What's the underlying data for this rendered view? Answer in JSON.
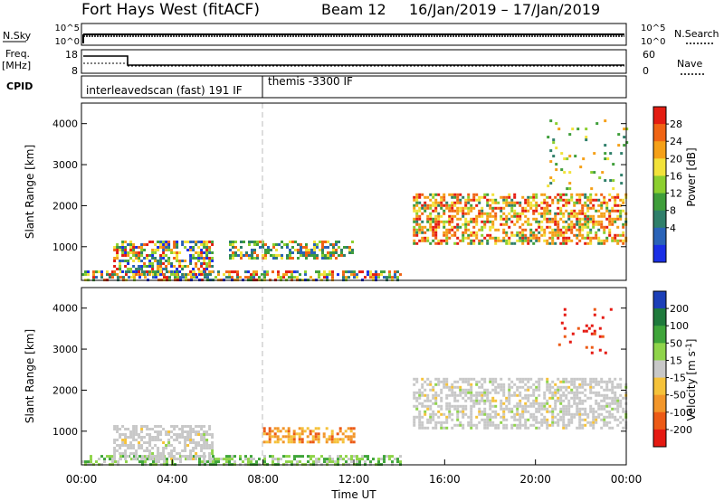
{
  "header": {
    "title": "Fort Hays West (fitACF)",
    "beam": "Beam 12",
    "dates": "16/Jan/2019 – 17/Jan/2019"
  },
  "strip": {
    "nsky_label": "N.Sky",
    "nsearch_label": "N.Search",
    "freq_label": "Freq.",
    "freq_unit": "[MHz]",
    "nave_label": "Nave",
    "cpid_label": "CPID",
    "nsky_ticks": [
      "10^5",
      "10^0"
    ],
    "nsearch_ticks": [
      "10^5",
      "10^0"
    ],
    "freq_ticks": [
      "18",
      "8"
    ],
    "nave_ticks": [
      "60",
      "0"
    ],
    "cpid_segments": [
      {
        "start": 0.0,
        "label": "interleavedscan (fast)  191 IF"
      },
      {
        "start": 8.0,
        "label": "themis -3300 IF"
      }
    ]
  },
  "chart_data": [
    {
      "type": "heatmap",
      "name": "power",
      "xlabel": "",
      "ylabel": "Slant Range [km]",
      "xlim": [
        0,
        24
      ],
      "ylim": [
        180,
        4500
      ],
      "y_ticks": [
        1000,
        2000,
        3000,
        4000
      ],
      "colorbar": {
        "label": "Power [dB]",
        "ticks": [
          "4",
          "8",
          "12",
          "16",
          "20",
          "24",
          "28"
        ],
        "colors": [
          "#1a2fe6",
          "#2a63b8",
          "#2f7f6a",
          "#3f9e3a",
          "#8ccf2f",
          "#f2e23a",
          "#f5a018",
          "#f06414",
          "#e41d12"
        ]
      },
      "echo_regions": [
        {
          "t_start": 0.0,
          "t_end": 14.0,
          "r_start": 200,
          "r_end": 420,
          "level": "mixed"
        },
        {
          "t_start": 1.4,
          "t_end": 5.8,
          "r_start": 300,
          "r_end": 1150,
          "level": "mixed"
        },
        {
          "t_start": 6.5,
          "t_end": 12.0,
          "r_start": 750,
          "r_end": 1150,
          "level": "low"
        },
        {
          "t_start": 14.6,
          "t_end": 24.0,
          "r_start": 1050,
          "r_end": 2300,
          "level": "high"
        },
        {
          "t_start": 20.5,
          "t_end": 24.0,
          "r_start": 2400,
          "r_end": 4100,
          "level": "sparse"
        }
      ]
    },
    {
      "type": "heatmap",
      "name": "velocity",
      "xlabel": "Time UT",
      "ylabel": "Slant Range [km]",
      "xlim": [
        0,
        24
      ],
      "ylim": [
        180,
        4500
      ],
      "x_ticks": [
        "00:00",
        "04:00",
        "08:00",
        "12:00",
        "16:00",
        "20:00",
        "00:00"
      ],
      "y_ticks": [
        1000,
        2000,
        3000,
        4000
      ],
      "colorbar": {
        "label": "Velocity [m s^-1]",
        "ticks": [
          "200",
          "100",
          "50",
          "15",
          "-15",
          "-50",
          "-100",
          "-200"
        ],
        "colors": [
          "#1c3fb8",
          "#1f7a3c",
          "#3fa53a",
          "#8fd44a",
          "#c8c8c8",
          "#f5c23a",
          "#f2962a",
          "#ec5a16",
          "#e51a12"
        ]
      },
      "echo_regions": [
        {
          "t_start": 0.0,
          "t_end": 14.0,
          "r_start": 200,
          "r_end": 420,
          "velocity": "green"
        },
        {
          "t_start": 1.4,
          "t_end": 5.8,
          "r_start": 300,
          "r_end": 1150,
          "velocity": "grey"
        },
        {
          "t_start": 8.0,
          "t_end": 12.0,
          "r_start": 750,
          "r_end": 1100,
          "velocity": "orange"
        },
        {
          "t_start": 14.6,
          "t_end": 24.0,
          "r_start": 1050,
          "r_end": 2300,
          "velocity": "grey"
        },
        {
          "t_start": 21.0,
          "t_end": 23.5,
          "r_start": 2900,
          "r_end": 4000,
          "velocity": "red"
        }
      ]
    }
  ]
}
